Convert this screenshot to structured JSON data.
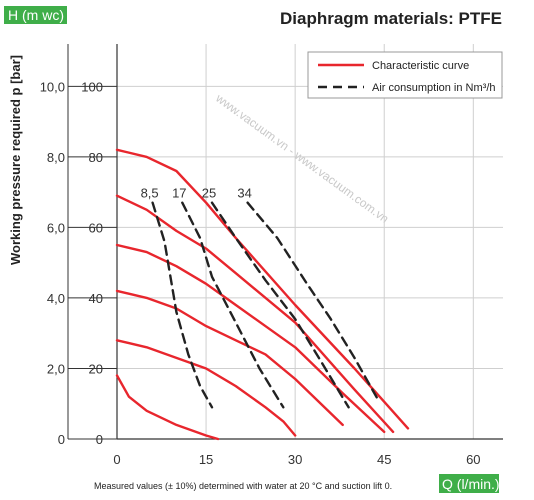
{
  "chart_data": {
    "type": "line",
    "title": "Diaphragm materials: PTFE",
    "y_axis_badge": "H (m wc)",
    "x_axis_badge": "Q (l/min.)",
    "ylabel": "Working pressure required p [bar]",
    "footnote": "Measured values (± 10%) determined with water at 20 °C and suction lift 0.",
    "watermark": "www.vacuum.vn  -  www.vacuum.com.vn",
    "xlim": [
      0,
      65
    ],
    "ylim": [
      0,
      112
    ],
    "x_ticks": [
      "0",
      "15",
      "30",
      "45",
      "60"
    ],
    "x_tick_values": [
      0,
      15,
      30,
      45,
      60
    ],
    "y_ticks_head": [
      "0",
      "20",
      "40",
      "60",
      "80",
      "100"
    ],
    "y_tick_values": [
      0,
      20,
      40,
      60,
      80,
      100
    ],
    "y_ticks_pressure": [
      "0",
      "2,0",
      "4,0",
      "6,0",
      "8,0",
      "10,0"
    ],
    "legend": {
      "position": "top-right",
      "entries": [
        {
          "label": "Characteristic curve",
          "style": "solid",
          "color": "#e8262d"
        },
        {
          "label": "Air consumption in Nm³/h",
          "style": "dashed",
          "color": "#222222"
        }
      ]
    },
    "colors": {
      "curve": "#e8262d",
      "air": "#222222",
      "badge": "#3fae49",
      "grid": "#cfcfcf"
    },
    "series": [
      {
        "kind": "characteristic",
        "points": [
          [
            0,
            82
          ],
          [
            5,
            80
          ],
          [
            10,
            76
          ],
          [
            15,
            67
          ],
          [
            20,
            57
          ],
          [
            30,
            38
          ],
          [
            40,
            20
          ],
          [
            49,
            3
          ]
        ]
      },
      {
        "kind": "characteristic",
        "points": [
          [
            0,
            69
          ],
          [
            5,
            65
          ],
          [
            10,
            59
          ],
          [
            15,
            54
          ],
          [
            20,
            47
          ],
          [
            30,
            33
          ],
          [
            40,
            14
          ],
          [
            46.5,
            2
          ]
        ]
      },
      {
        "kind": "characteristic",
        "points": [
          [
            0,
            55
          ],
          [
            5,
            53
          ],
          [
            10,
            49
          ],
          [
            15,
            44
          ],
          [
            20,
            38
          ],
          [
            30,
            26
          ],
          [
            38,
            13
          ],
          [
            45,
            2
          ]
        ]
      },
      {
        "kind": "characteristic",
        "points": [
          [
            0,
            42
          ],
          [
            5,
            40
          ],
          [
            10,
            37
          ],
          [
            15,
            32
          ],
          [
            20,
            28
          ],
          [
            25,
            24
          ],
          [
            30,
            17
          ],
          [
            38,
            4
          ]
        ]
      },
      {
        "kind": "characteristic",
        "points": [
          [
            0,
            28
          ],
          [
            5,
            26
          ],
          [
            10,
            23
          ],
          [
            15,
            20
          ],
          [
            20,
            15
          ],
          [
            25,
            9
          ],
          [
            28,
            5
          ],
          [
            30,
            1
          ]
        ]
      },
      {
        "kind": "characteristic",
        "points": [
          [
            0,
            18
          ],
          [
            2,
            12
          ],
          [
            5,
            8
          ],
          [
            10,
            4
          ],
          [
            15,
            1
          ],
          [
            17,
            0
          ]
        ]
      },
      {
        "kind": "air",
        "label": "8,5",
        "points": [
          [
            6,
            67
          ],
          [
            8,
            56
          ],
          [
            10,
            36
          ],
          [
            12,
            24
          ],
          [
            14,
            15
          ],
          [
            16,
            9
          ]
        ]
      },
      {
        "kind": "air",
        "label": "17",
        "points": [
          [
            11,
            67
          ],
          [
            14,
            57
          ],
          [
            16,
            46
          ],
          [
            20,
            33
          ],
          [
            24,
            20
          ],
          [
            28,
            9
          ]
        ]
      },
      {
        "kind": "air",
        "label": "25",
        "points": [
          [
            16,
            67
          ],
          [
            20,
            57
          ],
          [
            25,
            45
          ],
          [
            30,
            34
          ],
          [
            34,
            23
          ],
          [
            39,
            9
          ]
        ]
      },
      {
        "kind": "air",
        "label": "34",
        "points": [
          [
            22,
            67
          ],
          [
            27,
            57
          ],
          [
            32,
            44
          ],
          [
            36,
            34
          ],
          [
            40,
            23
          ],
          [
            44,
            11
          ]
        ]
      }
    ]
  }
}
